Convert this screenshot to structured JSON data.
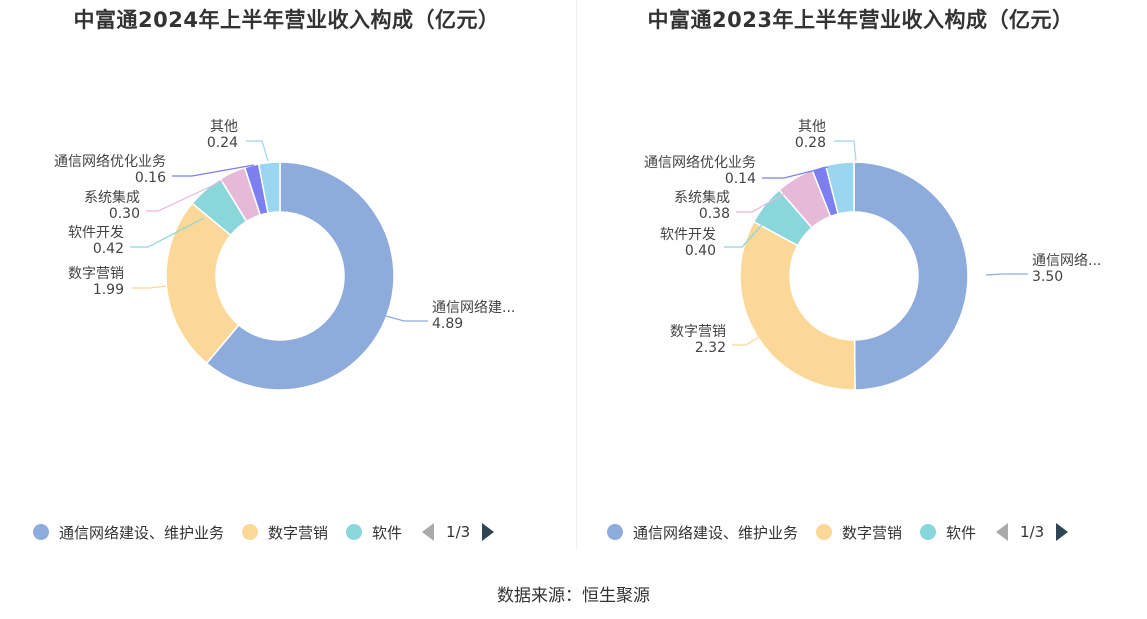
{
  "colors": {
    "series": [
      "#8eacdb",
      "#fcd898",
      "#89d6db",
      "#e6b9d8",
      "#7b7ff0",
      "#9ad6f0"
    ]
  },
  "chart_data": [
    {
      "type": "pie",
      "title": "中富通2024年上半年营业收入构成（亿元）",
      "donut": true,
      "labels": [
        {
          "name": "通信网络建...",
          "value": "4.89"
        },
        {
          "name": "数字营销",
          "value": "1.99"
        },
        {
          "name": "软件开发",
          "value": "0.42"
        },
        {
          "name": "系统集成",
          "value": "0.30"
        },
        {
          "name": "通信网络优化业务",
          "value": "0.16"
        },
        {
          "name": "其他",
          "value": "0.24"
        }
      ],
      "series": [
        {
          "name": "通信网络建设、维护业务",
          "value": 4.89
        },
        {
          "name": "数字营销",
          "value": 1.99
        },
        {
          "name": "软件开发",
          "value": 0.42
        },
        {
          "name": "系统集成",
          "value": 0.3
        },
        {
          "name": "通信网络优化业务",
          "value": 0.16
        },
        {
          "name": "其他",
          "value": 0.24
        }
      ],
      "legend": {
        "items": [
          "通信网络建设、维护业务",
          "数字营销",
          "软件"
        ],
        "page": "1/3",
        "position": "bottom"
      }
    },
    {
      "type": "pie",
      "title": "中富通2023年上半年营业收入构成（亿元）",
      "donut": true,
      "labels": [
        {
          "name": "通信网络...",
          "value": "3.50"
        },
        {
          "name": "数字营销",
          "value": "2.32"
        },
        {
          "name": "软件开发",
          "value": "0.40"
        },
        {
          "name": "系统集成",
          "value": "0.38"
        },
        {
          "name": "通信网络优化业务",
          "value": "0.14"
        },
        {
          "name": "其他",
          "value": "0.28"
        }
      ],
      "series": [
        {
          "name": "通信网络建设、维护业务",
          "value": 3.5
        },
        {
          "name": "数字营销",
          "value": 2.32
        },
        {
          "name": "软件开发",
          "value": 0.4
        },
        {
          "name": "系统集成",
          "value": 0.38
        },
        {
          "name": "通信网络优化业务",
          "value": 0.14
        },
        {
          "name": "其他",
          "value": 0.28
        }
      ],
      "legend": {
        "items": [
          "通信网络建设、维护业务",
          "数字营销",
          "软件"
        ],
        "page": "1/3",
        "position": "bottom"
      }
    }
  ],
  "source": "数据来源：恒生聚源"
}
